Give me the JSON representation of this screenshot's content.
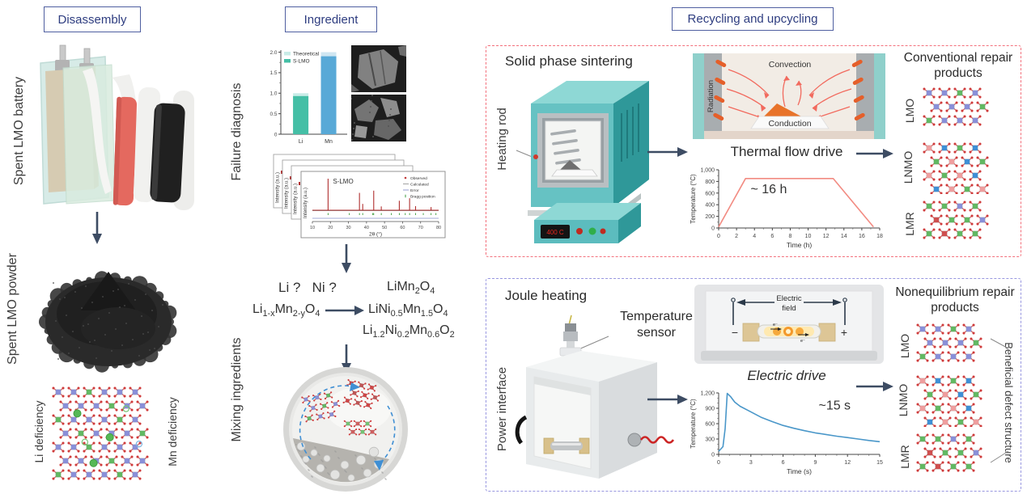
{
  "stage_labels": {
    "disassembly": "Disassembly",
    "ingredient": "Ingredient",
    "recycling": "Recycling and upcycling"
  },
  "left": {
    "battery_label": "Spent LMO battery",
    "powder_label": "Spent LMO powder",
    "li_deficiency": "Li deficiency",
    "mn_deficiency": "Mn deficiency"
  },
  "middle": {
    "failure_diagnosis": "Failure diagnosis",
    "mixing_ingredients": "Mixing ingredients",
    "question": "Li ?   Ni ?",
    "reactant_formula": "Li~1-x~Mn~2-y~O~4~",
    "product_formulas": [
      "LiMn~2~O~4~",
      "LiNi~0.5~Mn~1.5~O~4~",
      "Li~1.2~Ni~0.2~Mn~0.6~O~2~"
    ]
  },
  "sintering": {
    "title": "Solid phase sintering",
    "heating_rod": "Heating rod",
    "display": "400 C",
    "convection": "Convection",
    "radiation": "Radiation",
    "conduction": "Conduction",
    "products_title": "Conventional repair products",
    "products": [
      "LMO",
      "LNMO",
      "LMR"
    ]
  },
  "joule": {
    "title": "Joule heating",
    "temperature_sensor": "Temperature sensor",
    "power_interface": "Power interface",
    "electric_field_line1": "Electric",
    "electric_field_line2": "field",
    "minus": "−",
    "plus": "+",
    "electron": "e⁻",
    "products_title": "Nonequilibrium repair products",
    "products": [
      "LMO",
      "LNMO",
      "LMR"
    ],
    "beneficial": "Beneficial defect structure"
  },
  "chart_data": [
    {
      "id": "element-ratio",
      "type": "bar",
      "categories": [
        "Li",
        "Mn"
      ],
      "series": [
        {
          "name": "Theoretical",
          "values": [
            1.0,
            2.0
          ]
        },
        {
          "name": "S-LMO",
          "values": [
            0.93,
            1.9
          ]
        }
      ],
      "ylim": [
        0,
        2.0
      ],
      "yticks": [
        0,
        0.5,
        1.0,
        1.5,
        2.0
      ],
      "ytick_labels": [
        "0",
        "0.5",
        "1.0",
        "1.5",
        "2.0"
      ],
      "legend_position": "top-left",
      "colors": {
        "theoretical": [
          "#c9ece7",
          "#cfe6f2"
        ],
        "slmo": [
          "#45bfa6",
          "#58a9d7"
        ],
        "legend": [
          "#c9ece7",
          "#45bfa6"
        ]
      }
    },
    {
      "id": "xrd",
      "type": "line",
      "title": "S-LMO",
      "xlabel": "2θ (°)",
      "ylabel": "Intensity (a.u.)",
      "xlim": [
        10,
        80
      ],
      "xticks": [
        10,
        20,
        30,
        40,
        50,
        60,
        70,
        80
      ],
      "legend": [
        "Observed",
        "Calculated",
        "Error",
        "Bragg position"
      ],
      "stacked_panels": 4,
      "peaks": [
        [
          18.7,
          1.0
        ],
        [
          36.1,
          0.55
        ],
        [
          37.9,
          0.2
        ],
        [
          44.0,
          0.62
        ],
        [
          48.2,
          0.12
        ],
        [
          58.2,
          0.3
        ],
        [
          63.9,
          0.38
        ],
        [
          67.2,
          0.13
        ],
        [
          75.8,
          0.1
        ]
      ],
      "bragg_positions": [
        18.7,
        30.5,
        36.1,
        37.9,
        43.5,
        44.0,
        48.2,
        53.8,
        58.2,
        61.5,
        63.9,
        67.2,
        71.5,
        75.8,
        78.5
      ]
    },
    {
      "id": "thermal-drive",
      "type": "line",
      "title": "Thermal flow drive",
      "xlabel": "Time (h)",
      "ylabel": "Temperature (°C)",
      "xlim": [
        0,
        18
      ],
      "ylim": [
        0,
        1000
      ],
      "xticks": [
        0,
        2,
        4,
        6,
        8,
        10,
        12,
        14,
        16,
        18
      ],
      "yticks": [
        0,
        200,
        400,
        600,
        800,
        1000
      ],
      "ytick_labels": [
        "0",
        "200",
        "400",
        "600",
        "800",
        "1,000"
      ],
      "xminor": 1,
      "yminor": 100,
      "line_color": "#f28b82",
      "points": [
        [
          0,
          20
        ],
        [
          3,
          850
        ],
        [
          12.8,
          850
        ],
        [
          17.3,
          20
        ]
      ],
      "annotation": {
        "text": "~ 16 h",
        "x": 5.6,
        "y": 600,
        "size": 16
      }
    },
    {
      "id": "electric-drive",
      "type": "line",
      "title": "Electric drive",
      "xlabel": "Time (s)",
      "ylabel": "Temperature (°C)",
      "xlim": [
        0,
        15
      ],
      "ylim": [
        0,
        1200
      ],
      "xticks": [
        0,
        3,
        6,
        9,
        12,
        15
      ],
      "yticks": [
        0,
        300,
        600,
        900,
        1200
      ],
      "ytick_labels": [
        "0",
        "300",
        "600",
        "900",
        "1,200"
      ],
      "xminor": 1,
      "yminor": 100,
      "line_color": "#4a97c9",
      "points": [
        [
          0,
          60
        ],
        [
          0.4,
          150
        ],
        [
          0.6,
          500
        ],
        [
          0.8,
          1190
        ],
        [
          1.1,
          1130
        ],
        [
          1.5,
          1020
        ],
        [
          2,
          940
        ],
        [
          3,
          830
        ],
        [
          4,
          720
        ],
        [
          5,
          640
        ],
        [
          6,
          565
        ],
        [
          7,
          510
        ],
        [
          8,
          462
        ],
        [
          9,
          420
        ],
        [
          10,
          388
        ],
        [
          11,
          356
        ],
        [
          12,
          328
        ],
        [
          13,
          300
        ],
        [
          14,
          272
        ],
        [
          15,
          248
        ]
      ],
      "annotation": {
        "text": "~15 s",
        "x": 10.8,
        "y": 880,
        "size": 16
      }
    }
  ]
}
